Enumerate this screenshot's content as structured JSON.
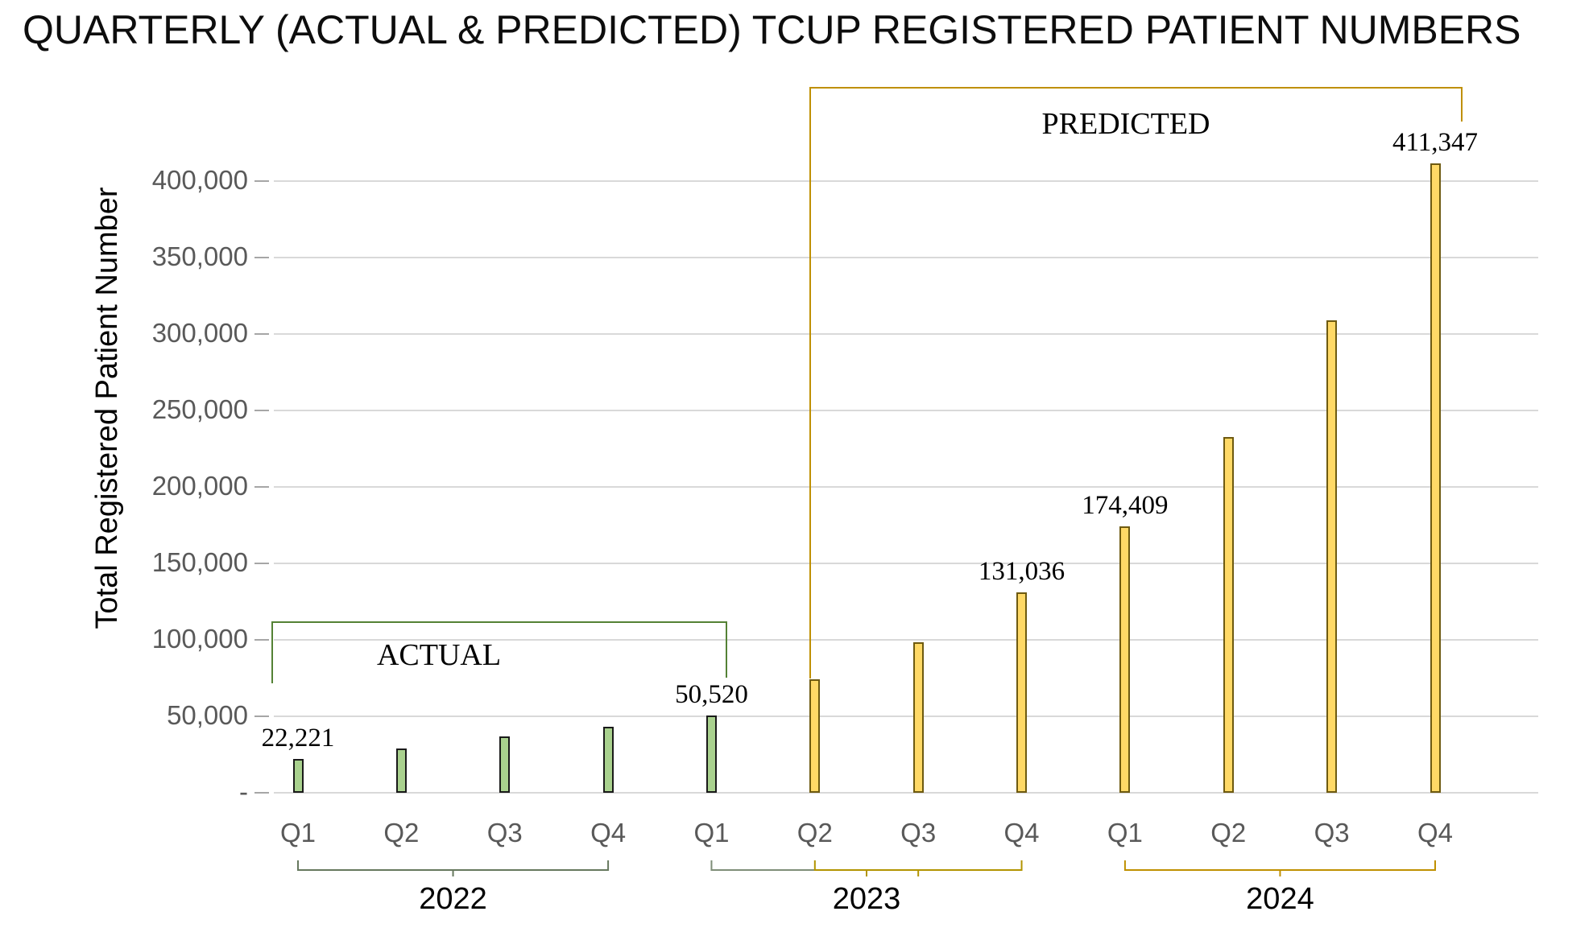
{
  "chart_data": {
    "type": "bar",
    "title": "QUARTERLY (ACTUAL & PREDICTED) TCUP REGISTERED PATIENT NUMBERS",
    "xlabel": "",
    "ylabel": "Total Registered Patient Number",
    "ylim": [
      0,
      420000
    ],
    "ytick_step": 50000,
    "ytick_labels": [
      "-",
      "50,000",
      "100,000",
      "150,000",
      "200,000",
      "250,000",
      "300,000",
      "350,000",
      "400,000"
    ],
    "grid": true,
    "legend": "none",
    "series": [
      {
        "name": "ACTUAL",
        "fill": "#a9d18e",
        "stroke": "#1a1a1a",
        "points": [
          {
            "year": "2022",
            "quarter": "Q1",
            "value": 22221,
            "data_label": "22,221"
          },
          {
            "year": "2022",
            "quarter": "Q2",
            "value": 29000,
            "estimated": true
          },
          {
            "year": "2022",
            "quarter": "Q3",
            "value": 37000,
            "estimated": true
          },
          {
            "year": "2022",
            "quarter": "Q4",
            "value": 43200,
            "estimated": true
          },
          {
            "year": "2023",
            "quarter": "Q1",
            "value": 50520,
            "data_label": "50,520"
          }
        ]
      },
      {
        "name": "PREDICTED",
        "fill": "#ffd966",
        "stroke": "#6e5a10",
        "points": [
          {
            "year": "2023",
            "quarter": "Q2",
            "value": 74000,
            "estimated": true
          },
          {
            "year": "2023",
            "quarter": "Q3",
            "value": 98500,
            "estimated": true
          },
          {
            "year": "2023",
            "quarter": "Q4",
            "value": 131036,
            "data_label": "131,036"
          },
          {
            "year": "2024",
            "quarter": "Q1",
            "value": 174409,
            "data_label": "174,409"
          },
          {
            "year": "2024",
            "quarter": "Q2",
            "value": 232500,
            "estimated": true
          },
          {
            "year": "2024",
            "quarter": "Q3",
            "value": 309000,
            "estimated": true
          },
          {
            "year": "2024",
            "quarter": "Q4",
            "value": 411347,
            "data_label": "411,347"
          }
        ]
      }
    ],
    "year_groups": [
      {
        "label": "2022",
        "bracket_color": "#66785e"
      },
      {
        "label": "2023",
        "bracket_color_left": "#7f8e78",
        "bracket_color_right": "#b29400"
      },
      {
        "label": "2024",
        "bracket_color": "#bf9000"
      }
    ]
  },
  "annotations": {
    "actual": {
      "label": "ACTUAL",
      "bracket_color": "#548235"
    },
    "predicted": {
      "label": "PREDICTED",
      "bracket_color": "#bf9000"
    }
  },
  "colors": {
    "background": "#ffffff",
    "gridline": "#d9d9d9",
    "tick": "#a6a6a6",
    "axis_text": "#595959",
    "title_text": "#0d0d0d"
  }
}
